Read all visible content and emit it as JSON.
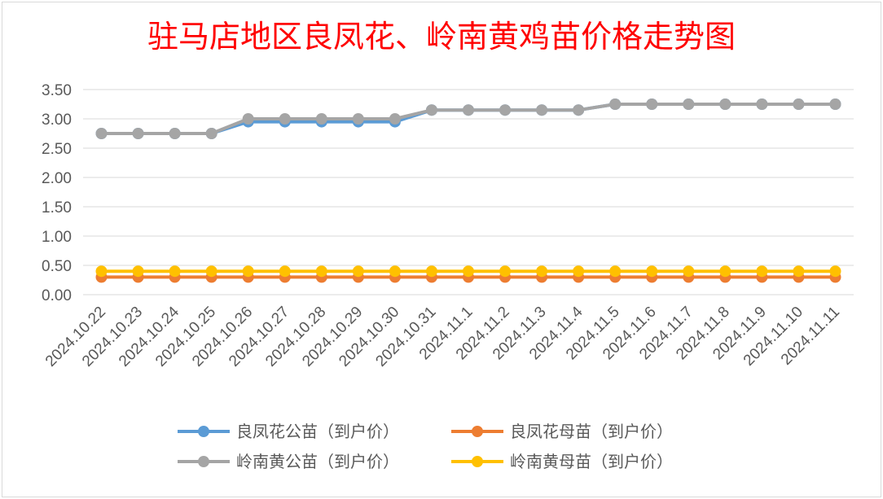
{
  "chart_data": {
    "type": "line",
    "title": "驻马店地区良凤花、岭南黄鸡苗价格走势图",
    "xlabel": "",
    "ylabel": "",
    "ylim": [
      0,
      3.5
    ],
    "yticks": [
      "0.00",
      "0.50",
      "1.00",
      "1.50",
      "2.00",
      "2.50",
      "3.00",
      "3.50"
    ],
    "grid": true,
    "legend_position": "bottom",
    "categories": [
      "2024.10.22",
      "2024.10.23",
      "2024.10.24",
      "2024.10.25",
      "2024.10.26",
      "2024.10.27",
      "2024.10.28",
      "2024.10.29",
      "2024.10.30",
      "2024.10.31",
      "2024.11.1",
      "2024.11.2",
      "2024.11.3",
      "2024.11.4",
      "2024.11.5",
      "2024.11.6",
      "2024.11.7",
      "2024.11.8",
      "2024.11.9",
      "2024.11.10",
      "2024.11.11"
    ],
    "series": [
      {
        "name": "良凤花公苗（到户价）",
        "color": "#5b9bd5",
        "values": [
          2.75,
          2.75,
          2.75,
          2.75,
          2.95,
          2.95,
          2.95,
          2.95,
          2.95,
          3.15,
          3.15,
          3.15,
          3.15,
          3.15,
          3.25,
          3.25,
          3.25,
          3.25,
          3.25,
          3.25,
          3.25
        ]
      },
      {
        "name": "良凤花母苗（到户价）",
        "color": "#ed7d31",
        "values": [
          0.3,
          0.3,
          0.3,
          0.3,
          0.3,
          0.3,
          0.3,
          0.3,
          0.3,
          0.3,
          0.3,
          0.3,
          0.3,
          0.3,
          0.3,
          0.3,
          0.3,
          0.3,
          0.3,
          0.3,
          0.3
        ]
      },
      {
        "name": "岭南黄公苗（到户价）",
        "color": "#a5a5a5",
        "values": [
          2.75,
          2.75,
          2.75,
          2.75,
          3.0,
          3.0,
          3.0,
          3.0,
          3.0,
          3.15,
          3.15,
          3.15,
          3.15,
          3.15,
          3.25,
          3.25,
          3.25,
          3.25,
          3.25,
          3.25,
          3.25
        ]
      },
      {
        "name": "岭南黄母苗（到户价）",
        "color": "#ffc000",
        "values": [
          0.4,
          0.4,
          0.4,
          0.4,
          0.4,
          0.4,
          0.4,
          0.4,
          0.4,
          0.4,
          0.4,
          0.4,
          0.4,
          0.4,
          0.4,
          0.4,
          0.4,
          0.4,
          0.4,
          0.4,
          0.4
        ]
      }
    ]
  }
}
